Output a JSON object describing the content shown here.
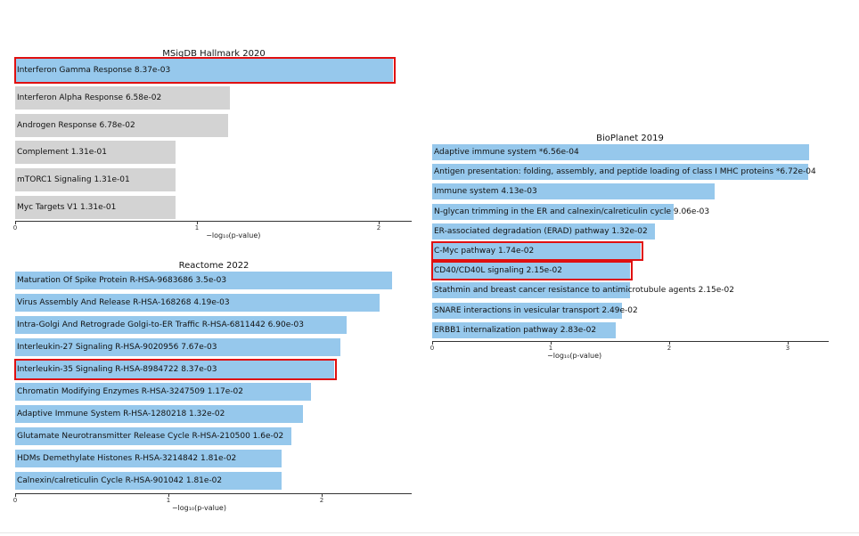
{
  "colors": {
    "significant": "#96c8ec",
    "nonsignificant": "#d3d3d3",
    "highlight": "#e01010"
  },
  "chart_data": [
    {
      "id": "msigdb",
      "type": "bar",
      "orientation": "horizontal",
      "title": "MSigDB Hallmark 2020",
      "xlabel": "−log₁₀(p-value)",
      "xlim": [
        0,
        2.15
      ],
      "xticks": [
        0,
        1,
        2
      ],
      "series": [
        {
          "name": "terms",
          "labels": [
            "Interferon Gamma Response  8.37e-03",
            "Interferon Alpha Response  6.58e-02",
            "Androgen Response  6.78e-02",
            "Complement  1.31e-01",
            "mTORC1 Signaling  1.31e-01",
            "Myc Targets V1  1.31e-01"
          ],
          "values": [
            2.08,
            1.18,
            1.17,
            0.88,
            0.88,
            0.88
          ],
          "significant": [
            true,
            false,
            false,
            false,
            false,
            false
          ],
          "highlighted": [
            true,
            false,
            false,
            false,
            false,
            false
          ]
        }
      ]
    },
    {
      "id": "bioplanet",
      "type": "bar",
      "orientation": "horizontal",
      "title": "BioPlanet 2019",
      "xlabel": "−log₁₀(p-value)",
      "xlim": [
        0,
        3.35
      ],
      "xticks": [
        0,
        1,
        2,
        3
      ],
      "series": [
        {
          "name": "terms",
          "labels": [
            "Adaptive immune system  *6.56e-04",
            "Antigen presentation: folding, assembly, and peptide loading of class I MHC proteins  *6.72e-04",
            "Immune system  4.13e-03",
            "N-glycan trimming in the ER and calnexin/calreticulin cycle  9.06e-03",
            "ER-associated degradation (ERAD) pathway  1.32e-02",
            "C-Myc pathway  1.74e-02",
            "CD40/CD40L signaling  2.15e-02",
            "Stathmin and breast cancer resistance to antimicrotubule agents  2.15e-02",
            "SNARE interactions in vesicular transport  2.49e-02",
            "ERBB1 internalization pathway  2.83e-02"
          ],
          "values": [
            3.18,
            3.17,
            2.38,
            2.04,
            1.88,
            1.76,
            1.67,
            1.67,
            1.6,
            1.55
          ],
          "significant": [
            true,
            true,
            true,
            true,
            true,
            true,
            true,
            true,
            true,
            true
          ],
          "highlighted": [
            false,
            false,
            false,
            false,
            false,
            true,
            true,
            false,
            false,
            false
          ]
        }
      ]
    },
    {
      "id": "reactome",
      "type": "bar",
      "orientation": "horizontal",
      "title": "Reactome 2022",
      "xlabel": "−log₁₀(p-value)",
      "xlim": [
        0,
        2.58
      ],
      "xticks": [
        0,
        1,
        2
      ],
      "series": [
        {
          "name": "terms",
          "labels": [
            "Maturation Of Spike Protein R-HSA-9683686  3.5e-03",
            "Virus Assembly And Release R-HSA-168268  4.19e-03",
            "Intra-Golgi And Retrograde Golgi-to-ER Traffic R-HSA-6811442  6.90e-03",
            "Interleukin-27 Signaling R-HSA-9020956  7.67e-03",
            "Interleukin-35 Signaling R-HSA-8984722  8.37e-03",
            "Chromatin Modifying Enzymes R-HSA-3247509  1.17e-02",
            "Adaptive Immune System R-HSA-1280218  1.32e-02",
            "Glutamate Neurotransmitter Release Cycle R-HSA-210500  1.6e-02",
            "HDMs Demethylate Histones R-HSA-3214842  1.81e-02",
            "Calnexin/calreticulin Cycle R-HSA-901042  1.81e-02"
          ],
          "values": [
            2.46,
            2.38,
            2.16,
            2.12,
            2.08,
            1.93,
            1.88,
            1.8,
            1.74,
            1.74
          ],
          "significant": [
            true,
            true,
            true,
            true,
            true,
            true,
            true,
            true,
            true,
            true
          ],
          "highlighted": [
            false,
            false,
            false,
            false,
            true,
            false,
            false,
            false,
            false,
            false
          ]
        }
      ]
    }
  ]
}
